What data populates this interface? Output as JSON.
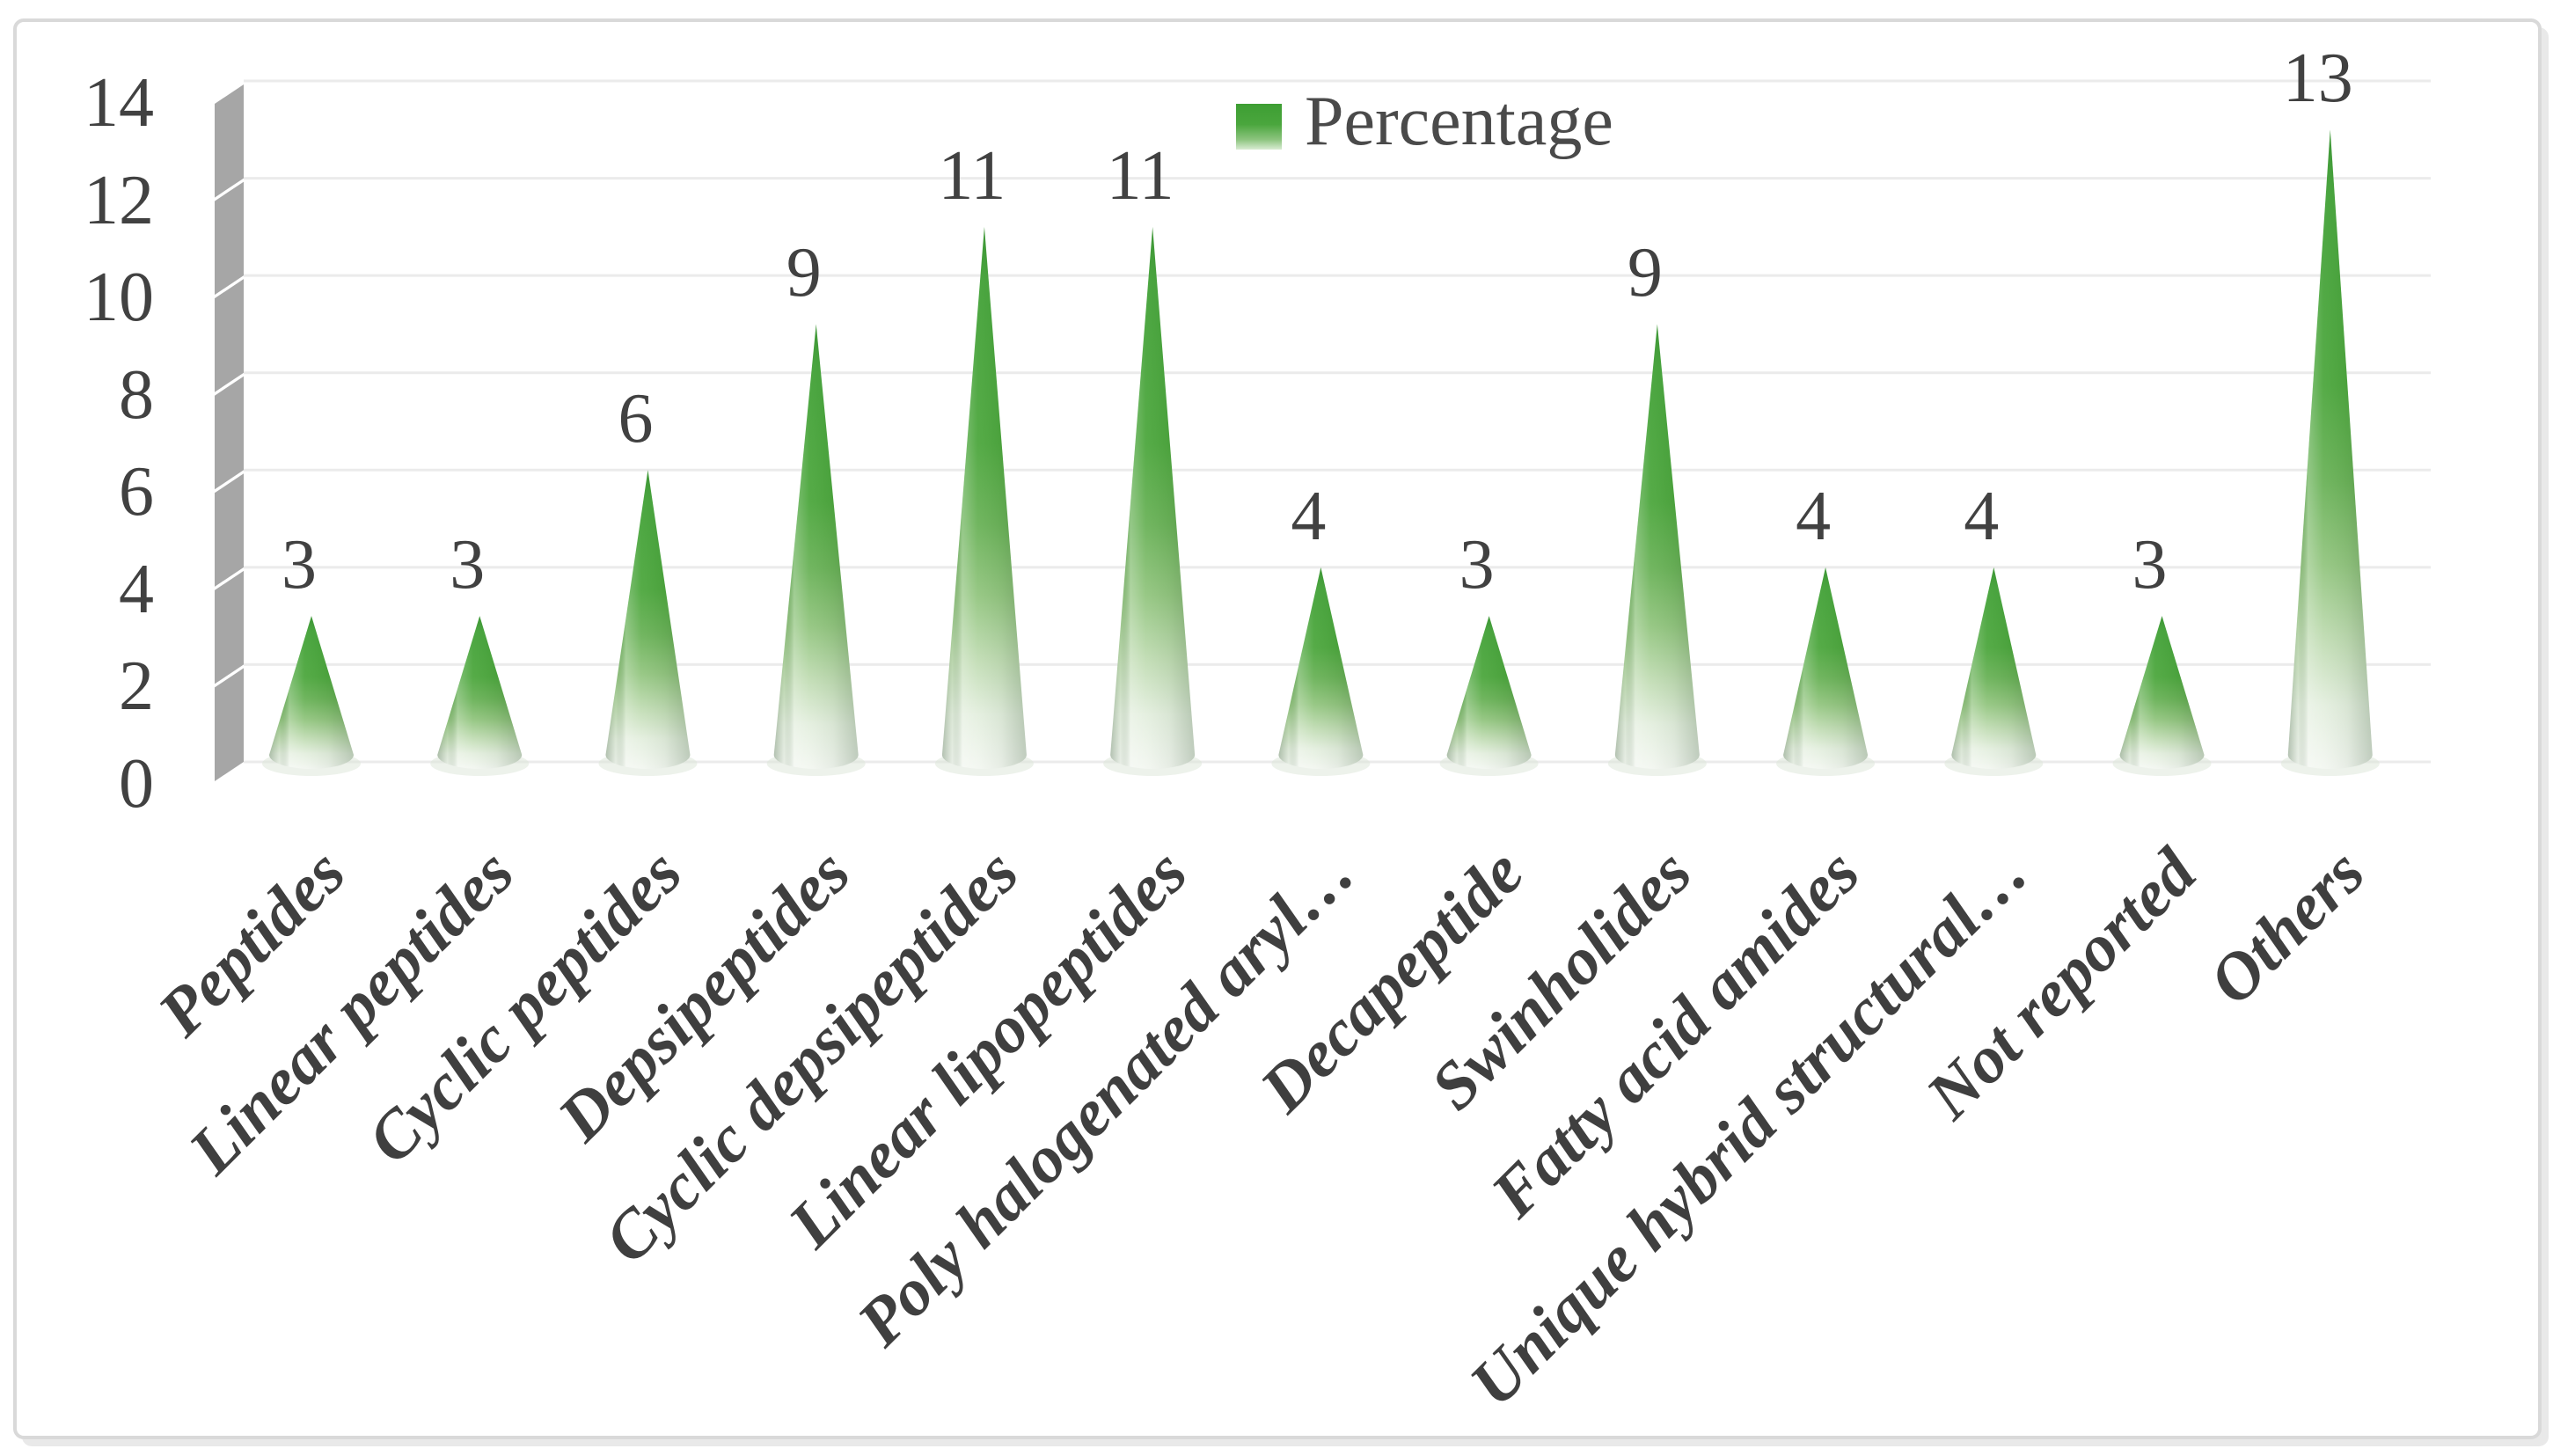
{
  "figure": {
    "background": "#ffffff",
    "border_color": "#d9d9d9"
  },
  "legend": {
    "label": "Percentage",
    "swatch_color": "#46a53a"
  },
  "chart_data": {
    "type": "bar",
    "subtype": "cone-3d",
    "title": "",
    "xlabel": "",
    "ylabel": "",
    "categories": [
      "Peptides",
      "Linear peptides",
      "Cyclic peptides",
      "Depsipeptides",
      "Cyclic depsipeptides",
      "Linear lipopeptides",
      "Poly halogenated aryl…",
      "Decapeptide",
      "Swinholides",
      "Fatty acid amides",
      "Unique hybrid structural…",
      "Not reported",
      "Others"
    ],
    "values": [
      3,
      3,
      6,
      9,
      11,
      11,
      4,
      3,
      9,
      4,
      4,
      3,
      13
    ],
    "series": [
      {
        "name": "Percentage",
        "values": [
          3,
          3,
          6,
          9,
          11,
          11,
          4,
          3,
          9,
          4,
          4,
          3,
          13
        ]
      }
    ],
    "ylim": [
      0,
      14
    ],
    "yticks": [
      0,
      2,
      4,
      6,
      8,
      10,
      12,
      14
    ],
    "grid": true,
    "legend_position": "top-center",
    "bar_color_top": "#46a53a",
    "bar_color_bottom": "#f3f7f1",
    "wall_color": "#a6a6a6",
    "gridline_color": "#ebebeb",
    "text_color": "#414141"
  }
}
